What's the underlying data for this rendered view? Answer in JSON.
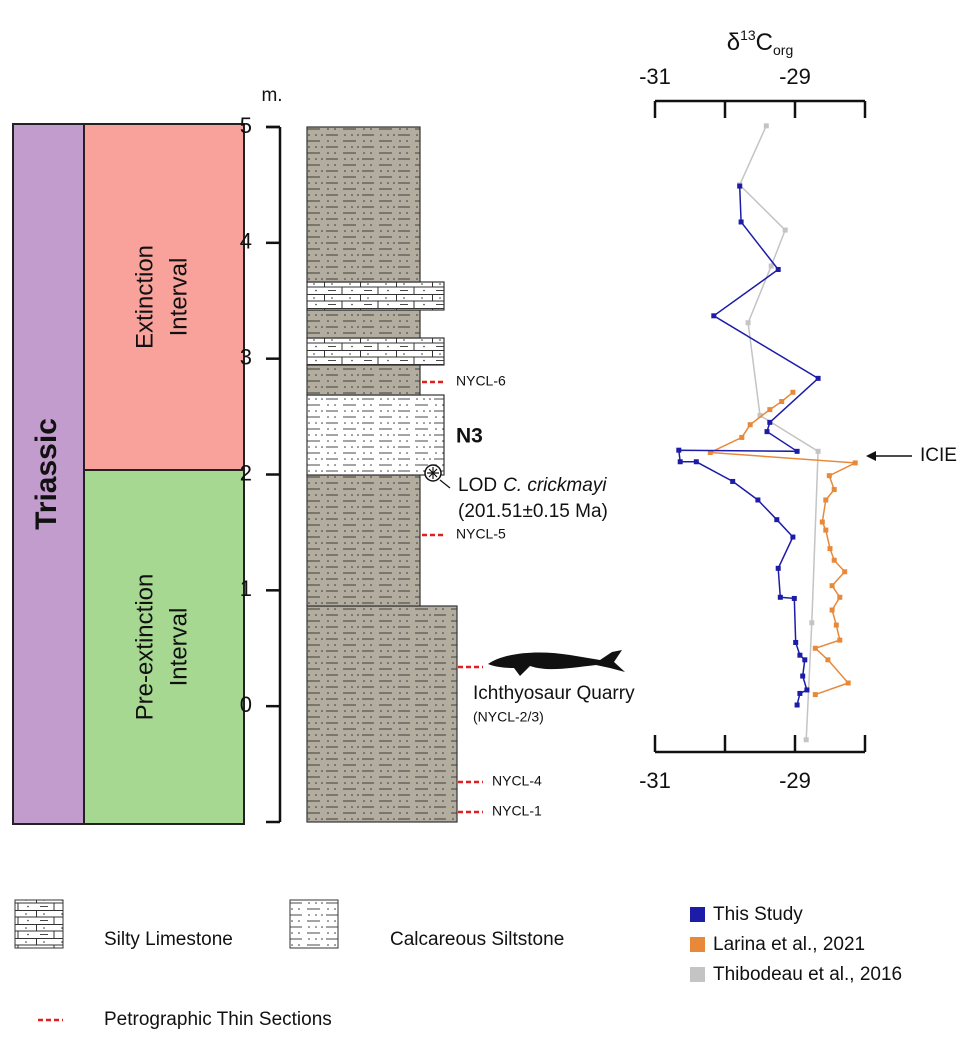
{
  "chart_data": {
    "type": "line",
    "xlabel_parts": [
      "δ",
      "13",
      "C",
      "org"
    ],
    "ylabel": "m.",
    "xlim": [
      -31,
      -28
    ],
    "xticks": [
      -31,
      -29
    ],
    "xticks_minor": [
      -30,
      -28
    ],
    "ylim": [
      -1,
      5
    ],
    "yticks": [
      0,
      1,
      2,
      3,
      4,
      5
    ],
    "annotation": "ICIE",
    "series": [
      {
        "name": "Thibodeau et al., 2016",
        "color": "#c4c4c4",
        "x": [
          -29.41,
          -29.79,
          -29.14,
          -29.34,
          -29.67,
          -29.5,
          -28.67,
          -28.76,
          -28.84
        ],
        "y": [
          5.01,
          4.5,
          4.11,
          3.8,
          3.31,
          2.51,
          2.2,
          0.72,
          -0.29
        ]
      },
      {
        "name": "Larina et al., 2021",
        "color": "#e8893a",
        "x": [
          -29.03,
          -29.19,
          -29.36,
          -29.64,
          -29.76,
          -30.21,
          -28.14,
          -28.51,
          -28.44,
          -28.56,
          -28.61,
          -28.56,
          -28.5,
          -28.44,
          -28.29,
          -28.47,
          -28.36,
          -28.47,
          -28.41,
          -28.36,
          -28.71,
          -28.53,
          -28.24,
          -28.71
        ],
        "y": [
          2.71,
          2.63,
          2.56,
          2.43,
          2.32,
          2.19,
          2.1,
          1.99,
          1.87,
          1.78,
          1.59,
          1.52,
          1.36,
          1.26,
          1.16,
          1.04,
          0.94,
          0.83,
          0.7,
          0.57,
          0.5,
          0.4,
          0.2,
          0.1
        ]
      },
      {
        "name": "This Study",
        "color": "#1c1ca8",
        "x": [
          -29.79,
          -29.77,
          -29.24,
          -30.16,
          -28.67,
          -29.36,
          -29.4,
          -28.97,
          -30.66,
          -30.64,
          -30.41,
          -29.89,
          -29.53,
          -29.26,
          -29.03,
          -29.24,
          -29.21,
          -29.01,
          -28.99,
          -28.93,
          -28.86,
          -28.89,
          -28.83,
          -28.93,
          -28.97
        ],
        "y": [
          4.49,
          4.18,
          3.77,
          3.37,
          2.83,
          2.45,
          2.37,
          2.2,
          2.21,
          2.11,
          2.11,
          1.94,
          1.78,
          1.61,
          1.46,
          1.19,
          0.94,
          0.93,
          0.55,
          0.44,
          0.4,
          0.26,
          0.14,
          0.11,
          0.01
        ]
      }
    ]
  },
  "stratigraphy": {
    "system": "Triassic",
    "intervals": [
      [
        "Extinction",
        "Interval"
      ],
      [
        "Pre-extinction",
        "Interval"
      ]
    ],
    "unit": "N3",
    "fossil": {
      "prefix": "LOD",
      "taxon": "C. crickmayi",
      "age": "(201.51±0.15 Ma)"
    },
    "quarry": {
      "name": "Ichthyosaur Quarry",
      "samples": "(NYCL-2/3)"
    },
    "samples": [
      "NYCL-6",
      "NYCL-5",
      "NYCL-4",
      "NYCL-1"
    ]
  },
  "legend": {
    "lithology": [
      "Silty Limestone",
      "Calcareous Siltstone"
    ],
    "thin_sections": "Petrographic Thin Sections"
  }
}
